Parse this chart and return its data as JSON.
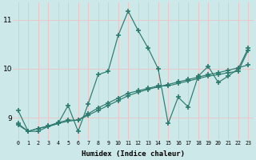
{
  "xlabel": "Humidex (Indice chaleur)",
  "xlim": [
    -0.5,
    23.5
  ],
  "ylim": [
    8.55,
    11.35
  ],
  "yticks": [
    9,
    10,
    11
  ],
  "xticks": [
    0,
    1,
    2,
    3,
    4,
    5,
    6,
    7,
    8,
    9,
    10,
    11,
    12,
    13,
    14,
    15,
    16,
    17,
    18,
    19,
    20,
    21,
    22,
    23
  ],
  "bg_color": "#cce8e8",
  "grid_color": "#e8c8c8",
  "line_color": "#2d7a6e",
  "line1_x": [
    0,
    1,
    2,
    3,
    4,
    5,
    6,
    7,
    8,
    9,
    10,
    11,
    12,
    13,
    14,
    15,
    16,
    17,
    18,
    19,
    20,
    21,
    22,
    23
  ],
  "line1_y": [
    9.15,
    8.72,
    8.72,
    8.82,
    8.88,
    9.25,
    8.72,
    9.28,
    9.88,
    9.95,
    10.68,
    11.18,
    10.78,
    10.42,
    10.0,
    8.88,
    9.42,
    9.22,
    9.85,
    10.05,
    9.72,
    9.85,
    10.0,
    10.42
  ],
  "line2_x": [
    0,
    1,
    2,
    3,
    4,
    5,
    6,
    7,
    8,
    9,
    10,
    11,
    12,
    13,
    14,
    15,
    16,
    17,
    18,
    19,
    20,
    21,
    22,
    23
  ],
  "line2_y": [
    8.85,
    8.72,
    8.78,
    8.82,
    8.88,
    8.93,
    8.95,
    9.05,
    9.15,
    9.25,
    9.35,
    9.45,
    9.52,
    9.58,
    9.63,
    9.68,
    9.73,
    9.78,
    9.83,
    9.88,
    9.92,
    9.97,
    10.02,
    10.08
  ],
  "line3_x": [
    0,
    1,
    2,
    3,
    4,
    5,
    6,
    7,
    8,
    9,
    10,
    11,
    12,
    13,
    14,
    15,
    16,
    17,
    18,
    19,
    20,
    21,
    22,
    23
  ],
  "line3_y": [
    8.88,
    8.72,
    8.78,
    8.83,
    8.9,
    8.95,
    8.95,
    9.08,
    9.2,
    9.3,
    9.4,
    9.5,
    9.55,
    9.6,
    9.65,
    9.65,
    9.7,
    9.75,
    9.8,
    9.85,
    9.88,
    9.92,
    9.95,
    10.38
  ]
}
